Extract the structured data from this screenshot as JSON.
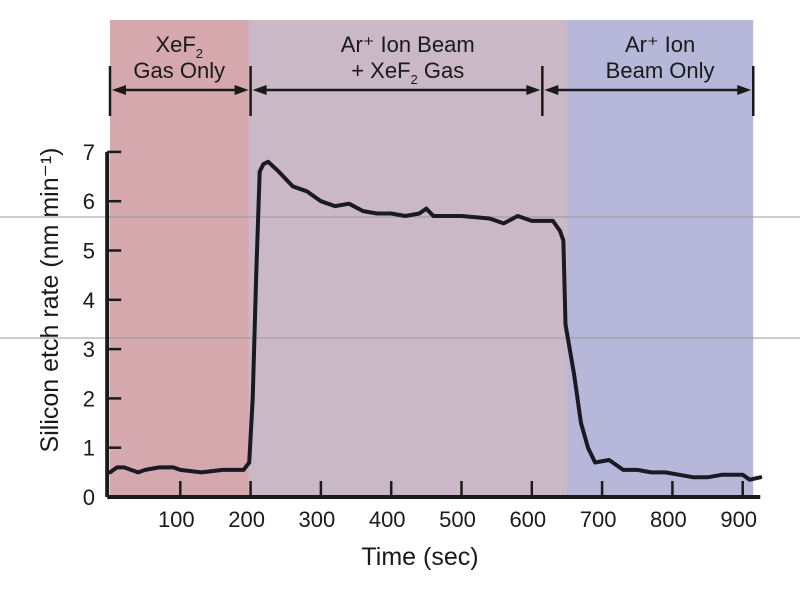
{
  "chart_data": {
    "type": "line",
    "title": "",
    "xlabel": "Time (sec)",
    "ylabel": "Silicon etch rate (nm min⁻¹)",
    "xlim": [
      0,
      925
    ],
    "ylim": [
      0,
      7
    ],
    "xticks": [
      100,
      200,
      300,
      400,
      500,
      600,
      700,
      800,
      900
    ],
    "yticks": [
      0,
      1,
      2,
      3,
      4,
      5,
      6,
      7
    ],
    "grid": false,
    "regions": [
      {
        "label_line1": "XeF",
        "label_sub1": "2",
        "label_line1_post": "",
        "label_line2": "Gas Only",
        "start": 0,
        "end": 197,
        "color": "#d4a8ad"
      },
      {
        "label_line1": "Ar⁺ Ion Beam",
        "label_sub1": "",
        "label_line1_post": "",
        "label_line2_pre": "+ XeF",
        "label_line2_sub": "2",
        "label_line2": " Gas",
        "start": 197,
        "end": 650,
        "color": "#cab8c6"
      },
      {
        "label_line1": "Ar⁺ Ion",
        "label_sub1": "",
        "label_line1_post": "",
        "label_line2": "Beam Only",
        "start": 650,
        "end": 915,
        "color": "#b7b7da"
      }
    ],
    "brackets": [
      0,
      200,
      615,
      915
    ],
    "series": [
      {
        "color": "#1a1a24",
        "x": [
          0,
          10,
          20,
          30,
          40,
          50,
          70,
          90,
          100,
          130,
          160,
          190,
          198,
          203,
          208,
          213,
          218,
          225,
          240,
          260,
          280,
          300,
          320,
          340,
          360,
          380,
          400,
          420,
          440,
          450,
          460,
          500,
          540,
          560,
          580,
          600,
          630,
          640,
          645,
          648,
          660,
          670,
          680,
          690,
          710,
          730,
          750,
          770,
          790,
          810,
          830,
          850,
          870,
          900,
          910,
          925
        ],
        "y": [
          0.5,
          0.6,
          0.6,
          0.55,
          0.5,
          0.55,
          0.6,
          0.6,
          0.55,
          0.5,
          0.55,
          0.55,
          0.7,
          2,
          4.5,
          6.6,
          6.75,
          6.8,
          6.6,
          6.3,
          6.2,
          6.0,
          5.9,
          5.95,
          5.8,
          5.75,
          5.75,
          5.7,
          5.75,
          5.85,
          5.7,
          5.7,
          5.65,
          5.55,
          5.7,
          5.6,
          5.6,
          5.4,
          5.2,
          3.5,
          2.5,
          1.5,
          1.0,
          0.7,
          0.75,
          0.55,
          0.55,
          0.5,
          0.5,
          0.45,
          0.4,
          0.4,
          0.45,
          0.45,
          0.35,
          0.4
        ]
      }
    ]
  }
}
